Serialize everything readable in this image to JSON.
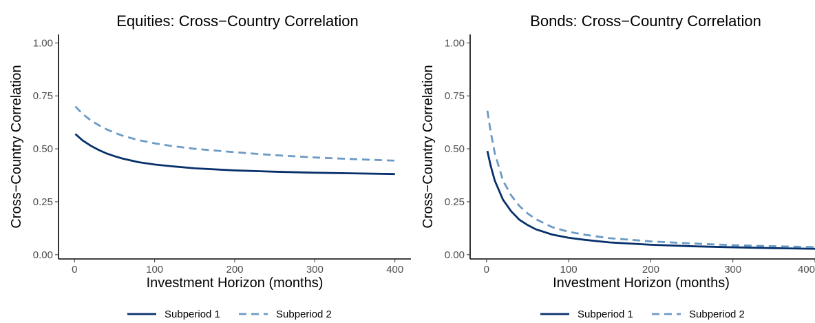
{
  "chart_data": [
    {
      "type": "line",
      "title": "Equities: Cross−Country Correlation",
      "xlabel": "Investment Horizon (months)",
      "ylabel": "Cross−Country Correlation",
      "xlim": [
        -20,
        420
      ],
      "ylim": [
        -0.02,
        1.04
      ],
      "xticks": [
        0,
        100,
        200,
        300,
        400
      ],
      "yticks": [
        0.0,
        0.25,
        0.5,
        0.75,
        1.0
      ],
      "xtick_labels": [
        "0",
        "100",
        "200",
        "300",
        "400"
      ],
      "ytick_labels": [
        "0.00",
        "0.25",
        "0.50",
        "0.75",
        "1.00"
      ],
      "grid": false,
      "legend_position": "bottom",
      "series": [
        {
          "name": "Subperiod 1",
          "color": "#08306b",
          "dash": "solid",
          "x": [
            1,
            10,
            20,
            30,
            40,
            50,
            60,
            80,
            100,
            120,
            150,
            200,
            250,
            300,
            350,
            400
          ],
          "y": [
            0.57,
            0.54,
            0.515,
            0.495,
            0.478,
            0.465,
            0.454,
            0.437,
            0.426,
            0.418,
            0.408,
            0.398,
            0.392,
            0.387,
            0.384,
            0.381
          ]
        },
        {
          "name": "Subperiod 2",
          "color": "#6b9ac4",
          "dash": "dashed",
          "x": [
            1,
            10,
            20,
            30,
            40,
            50,
            60,
            80,
            100,
            120,
            150,
            200,
            250,
            300,
            350,
            400
          ],
          "y": [
            0.7,
            0.665,
            0.635,
            0.612,
            0.592,
            0.576,
            0.562,
            0.541,
            0.526,
            0.514,
            0.5,
            0.484,
            0.47,
            0.459,
            0.451,
            0.444
          ]
        }
      ]
    },
    {
      "type": "line",
      "title": "Bonds: Cross−Country Correlation",
      "xlabel": "Investment Horizon (months)",
      "ylabel": "Cross−Country Correlation",
      "xlim": [
        -20,
        400
      ],
      "ylim": [
        -0.02,
        1.04
      ],
      "xticks": [
        0,
        100,
        200,
        300,
        400
      ],
      "yticks": [
        0.0,
        0.25,
        0.5,
        0.75,
        1.0
      ],
      "xtick_labels": [
        "0",
        "100",
        "200",
        "300",
        "400"
      ],
      "ytick_labels": [
        "0.00",
        "0.25",
        "0.50",
        "0.75",
        "1.00"
      ],
      "grid": false,
      "legend_position": "bottom",
      "series": [
        {
          "name": "Subperiod 1",
          "color": "#08306b",
          "dash": "solid",
          "x": [
            1,
            5,
            10,
            20,
            30,
            40,
            50,
            60,
            80,
            100,
            120,
            150,
            200,
            250,
            300,
            350,
            400
          ],
          "y": [
            0.49,
            0.42,
            0.35,
            0.26,
            0.205,
            0.165,
            0.14,
            0.12,
            0.095,
            0.08,
            0.07,
            0.058,
            0.047,
            0.04,
            0.035,
            0.031,
            0.028
          ]
        },
        {
          "name": "Subperiod 2",
          "color": "#6b9ac4",
          "dash": "dashed",
          "x": [
            1,
            5,
            10,
            20,
            30,
            40,
            50,
            60,
            80,
            100,
            120,
            150,
            200,
            250,
            300,
            350,
            400
          ],
          "y": [
            0.68,
            0.58,
            0.48,
            0.35,
            0.28,
            0.23,
            0.195,
            0.168,
            0.13,
            0.108,
            0.094,
            0.078,
            0.063,
            0.053,
            0.045,
            0.04,
            0.036
          ]
        }
      ]
    }
  ]
}
